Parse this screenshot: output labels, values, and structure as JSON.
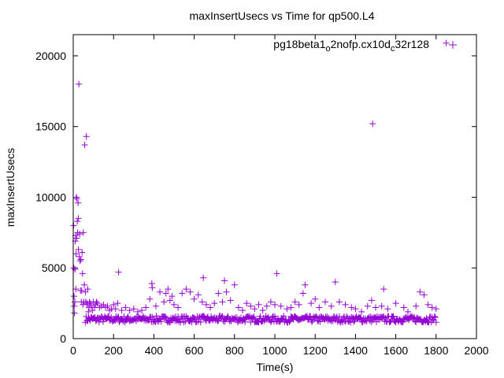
{
  "chart_data": {
    "type": "scatter",
    "title": "maxInsertUsecs vs Time for qp500.L4",
    "xlabel": "Time(s)",
    "ylabel": "maxInsertUsecs",
    "xlim": [
      0,
      2000
    ],
    "ylim": [
      0,
      21500
    ],
    "xticks": [
      0,
      200,
      400,
      600,
      800,
      1000,
      1200,
      1400,
      1600,
      1800,
      2000
    ],
    "yticks": [
      0,
      5000,
      10000,
      15000,
      20000
    ],
    "xtick_labels": [
      "0",
      "200",
      "400",
      "600",
      "800",
      "1000",
      "1200",
      "1400",
      "1600",
      "1800",
      "2000"
    ],
    "ytick_labels": [
      "0",
      "5000",
      "10000",
      "15000",
      "20000"
    ],
    "grid": false,
    "legend_position": "top-right",
    "series": [
      {
        "name": "pg18beta1_o2nofp.cx10d_c32r128",
        "legend_base": "pg18beta1",
        "legend_sub1": "o",
        "legend_mid": "2nofp.cx10d",
        "legend_sub2": "c",
        "legend_end": "32r128",
        "color": "#9400d3",
        "marker": "plus",
        "points": [
          [
            2,
            8000
          ],
          [
            3,
            5000
          ],
          [
            4,
            3000
          ],
          [
            5,
            2300
          ],
          [
            6,
            1800
          ],
          [
            8,
            2600
          ],
          [
            9,
            4900
          ],
          [
            10,
            6900
          ],
          [
            12,
            7300
          ],
          [
            13,
            3500
          ],
          [
            14,
            6000
          ],
          [
            15,
            10000
          ],
          [
            17,
            7100
          ],
          [
            18,
            9900
          ],
          [
            20,
            8300
          ],
          [
            22,
            7500
          ],
          [
            24,
            9600
          ],
          [
            25,
            8500
          ],
          [
            26,
            6300
          ],
          [
            28,
            18000
          ],
          [
            30,
            5800
          ],
          [
            32,
            7400
          ],
          [
            34,
            5500
          ],
          [
            36,
            3400
          ],
          [
            38,
            5600
          ],
          [
            40,
            2600
          ],
          [
            42,
            3400
          ],
          [
            44,
            6100
          ],
          [
            46,
            4600
          ],
          [
            48,
            2400
          ],
          [
            50,
            7500
          ],
          [
            52,
            2600
          ],
          [
            55,
            3800
          ],
          [
            57,
            13700
          ],
          [
            60,
            3300
          ],
          [
            62,
            2600
          ],
          [
            65,
            14300
          ],
          [
            68,
            2500
          ],
          [
            70,
            2400
          ],
          [
            72,
            3500
          ],
          [
            75,
            1900
          ],
          [
            78,
            2200
          ],
          [
            80,
            2600
          ],
          [
            85,
            2500
          ],
          [
            90,
            2300
          ],
          [
            95,
            2000
          ],
          [
            100,
            2600
          ],
          [
            105,
            2200
          ],
          [
            110,
            2400
          ],
          [
            115,
            2600
          ],
          [
            120,
            2500
          ],
          [
            130,
            2200
          ],
          [
            140,
            2300
          ],
          [
            150,
            2400
          ],
          [
            160,
            2200
          ],
          [
            170,
            2300
          ],
          [
            180,
            2000
          ],
          [
            190,
            2100
          ],
          [
            200,
            2400
          ],
          [
            210,
            2100
          ],
          [
            220,
            2500
          ],
          [
            225,
            4700
          ],
          [
            240,
            2000
          ],
          [
            260,
            2200
          ],
          [
            280,
            2000
          ],
          [
            300,
            2100
          ],
          [
            320,
            1900
          ],
          [
            340,
            2000
          ],
          [
            360,
            2200
          ],
          [
            380,
            2800
          ],
          [
            390,
            3900
          ],
          [
            392,
            3600
          ],
          [
            410,
            2300
          ],
          [
            430,
            3300
          ],
          [
            450,
            2600
          ],
          [
            460,
            3200
          ],
          [
            470,
            3500
          ],
          [
            480,
            2700
          ],
          [
            490,
            3000
          ],
          [
            500,
            2400
          ],
          [
            520,
            2200
          ],
          [
            540,
            3200
          ],
          [
            560,
            3500
          ],
          [
            580,
            3300
          ],
          [
            600,
            2800
          ],
          [
            620,
            3100
          ],
          [
            640,
            2600
          ],
          [
            645,
            4300
          ],
          [
            660,
            2400
          ],
          [
            680,
            2200
          ],
          [
            700,
            2500
          ],
          [
            720,
            3200
          ],
          [
            740,
            2600
          ],
          [
            750,
            4100
          ],
          [
            760,
            3300
          ],
          [
            780,
            2700
          ],
          [
            800,
            3800
          ],
          [
            820,
            2200
          ],
          [
            840,
            2000
          ],
          [
            860,
            2500
          ],
          [
            880,
            2300
          ],
          [
            900,
            2100
          ],
          [
            920,
            2400
          ],
          [
            940,
            2000
          ],
          [
            960,
            2300
          ],
          [
            980,
            2600
          ],
          [
            1000,
            2400
          ],
          [
            1010,
            4600
          ],
          [
            1030,
            2300
          ],
          [
            1060,
            2100
          ],
          [
            1080,
            2200
          ],
          [
            1100,
            2600
          ],
          [
            1120,
            2400
          ],
          [
            1140,
            3200
          ],
          [
            1150,
            3800
          ],
          [
            1180,
            2500
          ],
          [
            1200,
            2800
          ],
          [
            1220,
            2200
          ],
          [
            1250,
            2600
          ],
          [
            1280,
            2300
          ],
          [
            1300,
            4000
          ],
          [
            1320,
            2600
          ],
          [
            1350,
            2400
          ],
          [
            1380,
            2200
          ],
          [
            1400,
            2100
          ],
          [
            1430,
            1900
          ],
          [
            1460,
            2300
          ],
          [
            1480,
            2700
          ],
          [
            1485,
            15200
          ],
          [
            1500,
            2200
          ],
          [
            1530,
            2300
          ],
          [
            1540,
            3500
          ],
          [
            1560,
            2100
          ],
          [
            1600,
            2500
          ],
          [
            1640,
            2200
          ],
          [
            1660,
            1900
          ],
          [
            1700,
            2300
          ],
          [
            1720,
            3300
          ],
          [
            1740,
            3100
          ],
          [
            1760,
            2400
          ],
          [
            1780,
            2200
          ],
          [
            1800,
            2100
          ],
          [
            1850,
            20900
          ]
        ]
      }
    ]
  }
}
